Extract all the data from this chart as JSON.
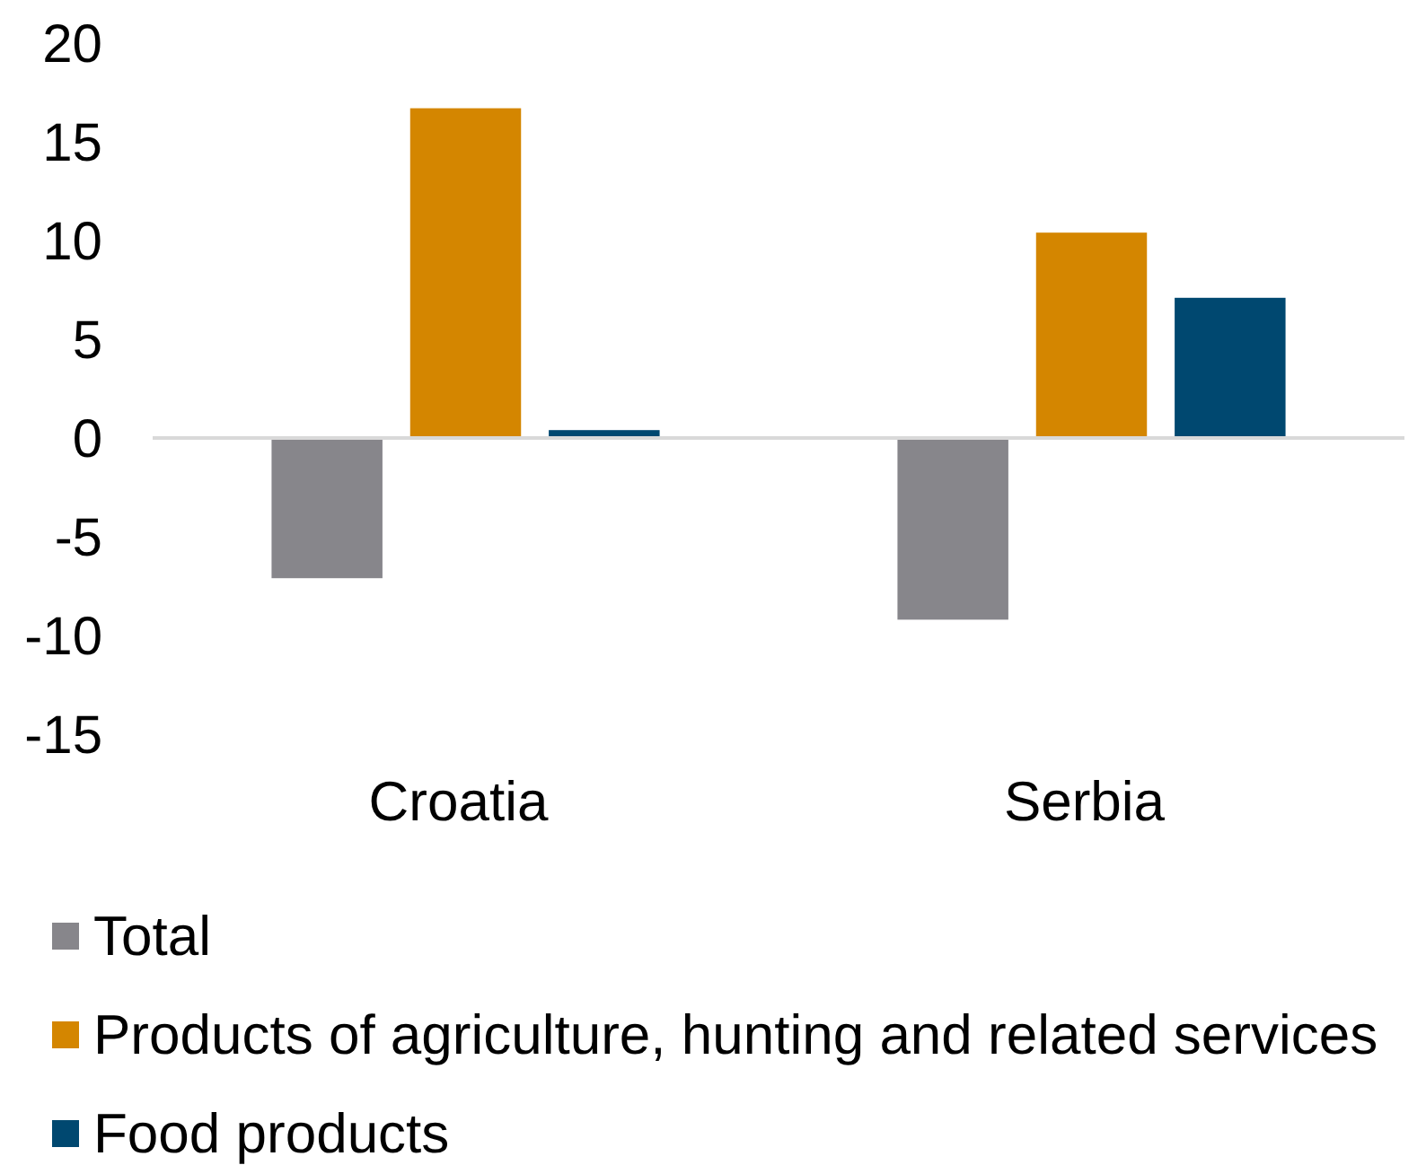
{
  "chart_data": {
    "type": "bar",
    "categories": [
      "Croatia",
      "Serbia"
    ],
    "series": [
      {
        "name": "Total",
        "color": "#87868b",
        "values": [
          -7.1,
          -9.2
        ]
      },
      {
        "name": "Products of agriculture, hunting and related services",
        "color": "#d48600",
        "values": [
          16.7,
          10.4
        ]
      },
      {
        "name": "Food products",
        "color": "#004870",
        "values": [
          0.4,
          7.1
        ]
      }
    ],
    "ylim": [
      -15,
      20
    ],
    "yticks": [
      -15,
      -10,
      -5,
      0,
      5,
      10,
      15,
      20
    ],
    "legend": "bottom"
  }
}
